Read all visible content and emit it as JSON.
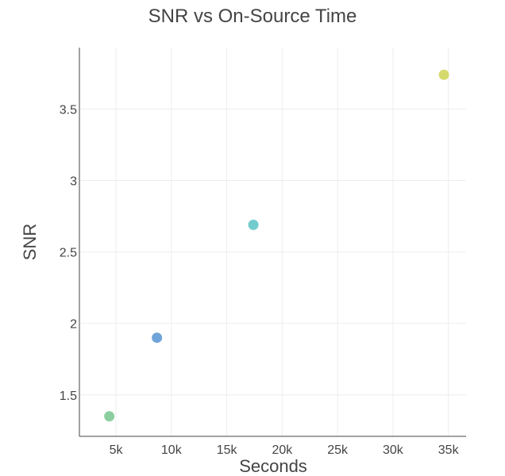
{
  "chart_data": {
    "type": "scatter",
    "title": "SNR vs On-Source Time",
    "xlabel": "Seconds",
    "ylabel": "SNR",
    "xlim": [
      1700,
      36600
    ],
    "ylim": [
      1.21,
      3.93
    ],
    "x_ticks": [
      5000,
      10000,
      15000,
      20000,
      25000,
      30000,
      35000
    ],
    "x_tick_labels": [
      "5k",
      "10k",
      "15k",
      "20k",
      "25k",
      "30k",
      "35k"
    ],
    "y_ticks": [
      1.5,
      2,
      2.5,
      3,
      3.5
    ],
    "y_tick_labels": [
      "1.5",
      "2",
      "2.5",
      "3",
      "3.5"
    ],
    "grid": true,
    "legend": "none",
    "points": [
      {
        "x": 4400,
        "y": 1.35,
        "color": "#8ccf9f"
      },
      {
        "x": 8700,
        "y": 1.9,
        "color": "#6fa4d8"
      },
      {
        "x": 17400,
        "y": 2.69,
        "color": "#72cbcc"
      },
      {
        "x": 34600,
        "y": 3.74,
        "color": "#d6d96e"
      }
    ]
  }
}
